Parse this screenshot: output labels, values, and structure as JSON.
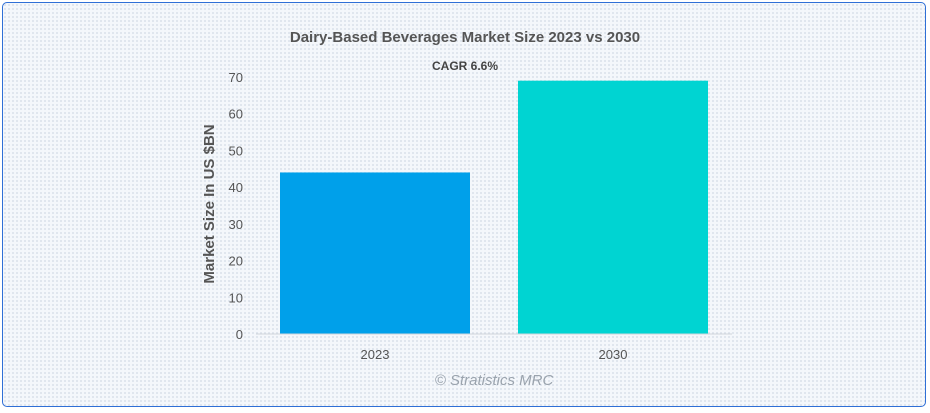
{
  "chart_data": {
    "type": "bar",
    "title": "Dairy-Based Beverages Market Size 2023 vs 2030",
    "annotation": "CAGR 6.6%",
    "xlabel": "",
    "ylabel": "Market Size In US $BN",
    "categories": [
      "2023",
      "2030"
    ],
    "values": [
      44,
      69
    ],
    "colors": [
      "#00a0ea",
      "#00d4d2"
    ],
    "ylim": [
      0,
      70
    ],
    "yticks": [
      0,
      10,
      20,
      30,
      40,
      50,
      60,
      70
    ],
    "grid": false,
    "legend": "none"
  },
  "watermark": "© Stratistics MRC"
}
